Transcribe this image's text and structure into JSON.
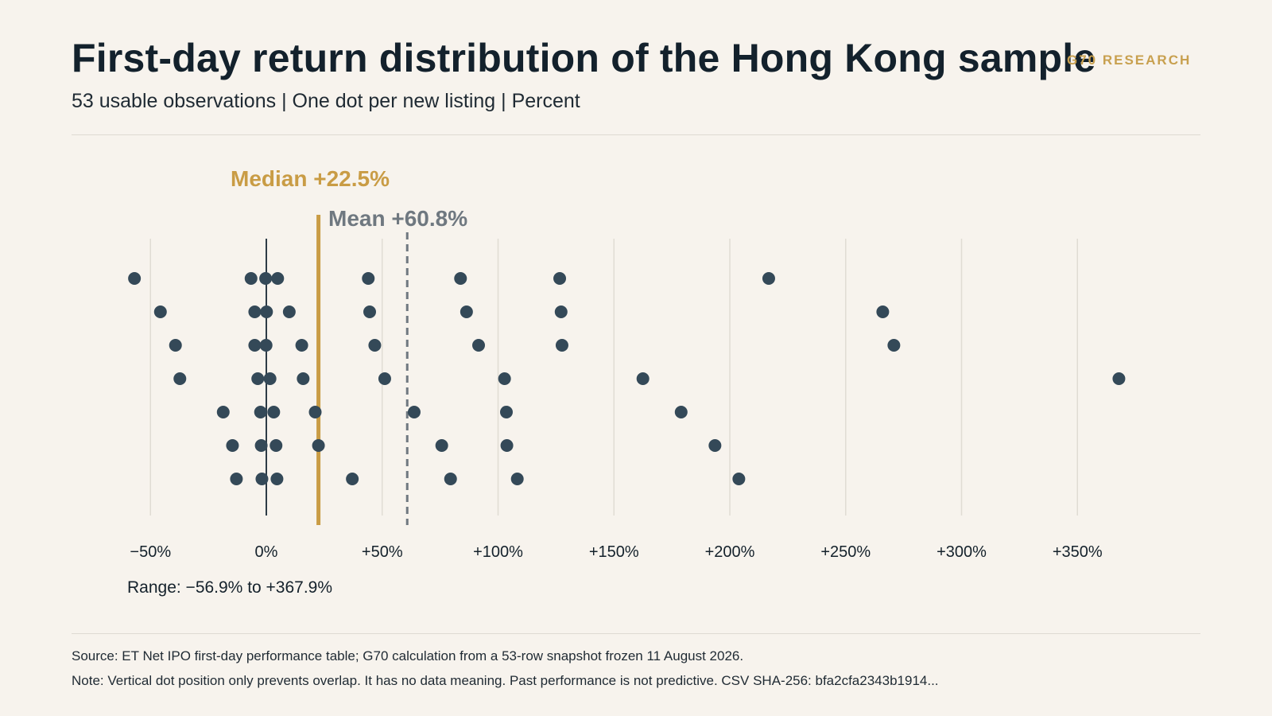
{
  "header": {
    "title": "First-day return distribution of the Hong Kong sample",
    "subtitle": "53 usable observations | One dot per new listing | Percent",
    "brand": "G70 RESEARCH"
  },
  "footer": {
    "source": "Source: ET Net IPO first-day performance table; G70 calculation from a 53-row snapshot frozen 11 August 2026.",
    "note": "Note: Vertical dot position only prevents overlap. It has no data meaning. Past performance is not predictive. CSV SHA-256: bfa2cfa2343b1914..."
  },
  "colors": {
    "dot": "#344958",
    "median": "#c99c45",
    "mean": "#6f7880",
    "zero_line": "#2d3b46",
    "grid": "#e0dcd4",
    "text": "#14212b"
  },
  "chart_data": {
    "type": "scatter",
    "title": "First-day return distribution of the Hong Kong sample",
    "xlabel": "",
    "ylabel": "",
    "unit": "%",
    "xlim": [
      -60,
      375
    ],
    "x_ticks": [
      -50,
      0,
      50,
      100,
      150,
      200,
      250,
      300,
      350
    ],
    "x_tick_labels": [
      "−50%",
      "0%",
      "+50%",
      "+100%",
      "+150%",
      "+200%",
      "+250%",
      "+300%",
      "+350%"
    ],
    "grid": true,
    "reference_lines": [
      {
        "name": "median",
        "label": "Median +22.5%",
        "value": 22.5
      },
      {
        "name": "mean",
        "label": "Mean +60.8%",
        "value": 60.8
      }
    ],
    "range_label": "Range: −56.9% to +367.9%",
    "rows": [
      [
        -56.9,
        -6.6,
        -0.3,
        4.9,
        44.0,
        83.8,
        126.6,
        216.8
      ],
      [
        -45.7,
        -5.0,
        0.1,
        9.9,
        44.6,
        86.4,
        127.2,
        266.0
      ],
      [
        -39.2,
        -5.0,
        -0.1,
        15.3,
        46.8,
        91.6,
        127.6,
        270.8
      ],
      [
        -37.3,
        -3.7,
        1.6,
        15.9,
        51.1,
        102.8,
        162.5,
        367.9
      ],
      [
        -18.6,
        -2.5,
        3.2,
        21.1,
        63.8,
        103.6,
        179.0
      ],
      [
        -14.6,
        -2.2,
        4.2,
        22.5,
        75.7,
        103.8,
        193.6
      ],
      [
        -12.9,
        -1.9,
        4.6,
        37.1,
        79.5,
        108.3,
        203.9
      ]
    ]
  }
}
